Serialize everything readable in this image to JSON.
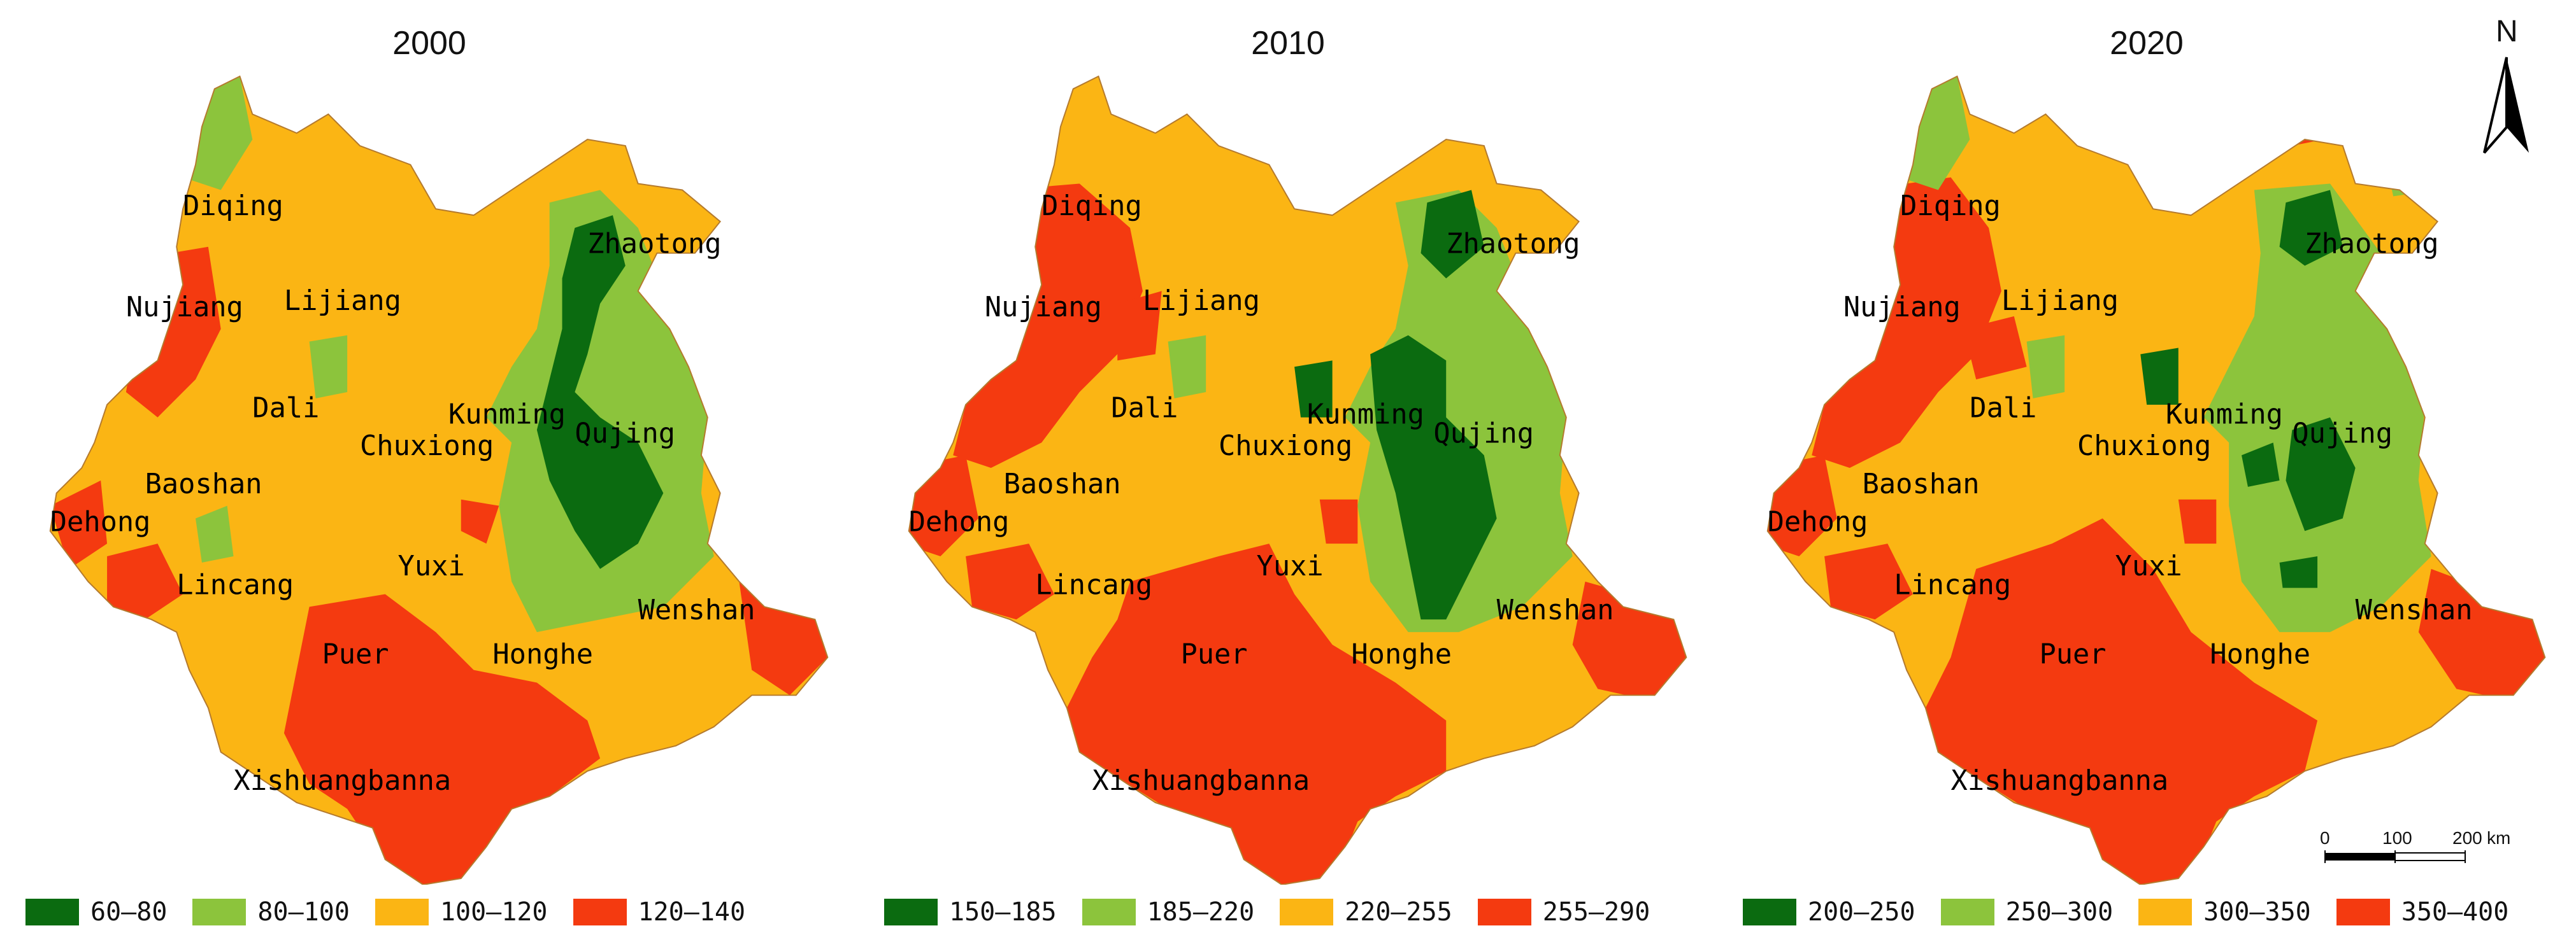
{
  "colors": {
    "dark_green": "#0b6b10",
    "light_green": "#8cc43c",
    "orange": "#fbb514",
    "red": "#f43a10",
    "border": "#b47a2e"
  },
  "north": {
    "label": "N"
  },
  "scale": {
    "ticks": [
      "0",
      "100",
      "200"
    ],
    "unit": "km"
  },
  "panels": [
    {
      "year": "2000",
      "legend": [
        "60–80",
        "80–100",
        "100–120",
        "120–140"
      ],
      "labels": {
        "diqing": "Diqing",
        "nujiang": "Nujiang",
        "lijiang": "Lijiang",
        "zhaotong": "Zhaotong",
        "dali": "Dali",
        "kunming": "Kunming",
        "qujing": "Qujing",
        "chuxiong": "Chuxiong",
        "baoshan": "Baoshan",
        "dehong": "Dehong",
        "lincang": "Lincang",
        "yuxi": "Yuxi",
        "wenshan": "Wenshan",
        "puer": "Puer",
        "honghe": "Honghe",
        "xishuangbanna": "Xishuangbanna"
      }
    },
    {
      "year": "2010",
      "legend": [
        "150–185",
        "185–220",
        "220–255",
        "255–290"
      ],
      "labels": {
        "diqing": "Diqing",
        "nujiang": "Nujiang",
        "lijiang": "Lijiang",
        "zhaotong": "Zhaotong",
        "dali": "Dali",
        "kunming": "Kunming",
        "qujing": "Qujing",
        "chuxiong": "Chuxiong",
        "baoshan": "Baoshan",
        "dehong": "Dehong",
        "lincang": "Lincang",
        "yuxi": "Yuxi",
        "wenshan": "Wenshan",
        "puer": "Puer",
        "honghe": "Honghe",
        "xishuangbanna": "Xishuangbanna"
      }
    },
    {
      "year": "2020",
      "legend": [
        "200–250",
        "250–300",
        "300–350",
        "350–400"
      ],
      "labels": {
        "diqing": "Diqing",
        "nujiang": "Nujiang",
        "lijiang": "Lijiang",
        "zhaotong": "Zhaotong",
        "dali": "Dali",
        "kunming": "Kunming",
        "qujing": "Qujing",
        "chuxiong": "Chuxiong",
        "baoshan": "Baoshan",
        "dehong": "Dehong",
        "lincang": "Lincang",
        "yuxi": "Yuxi",
        "wenshan": "Wenshan",
        "puer": "Puer",
        "honghe": "Honghe",
        "xishuangbanna": "Xishuangbanna"
      }
    }
  ]
}
